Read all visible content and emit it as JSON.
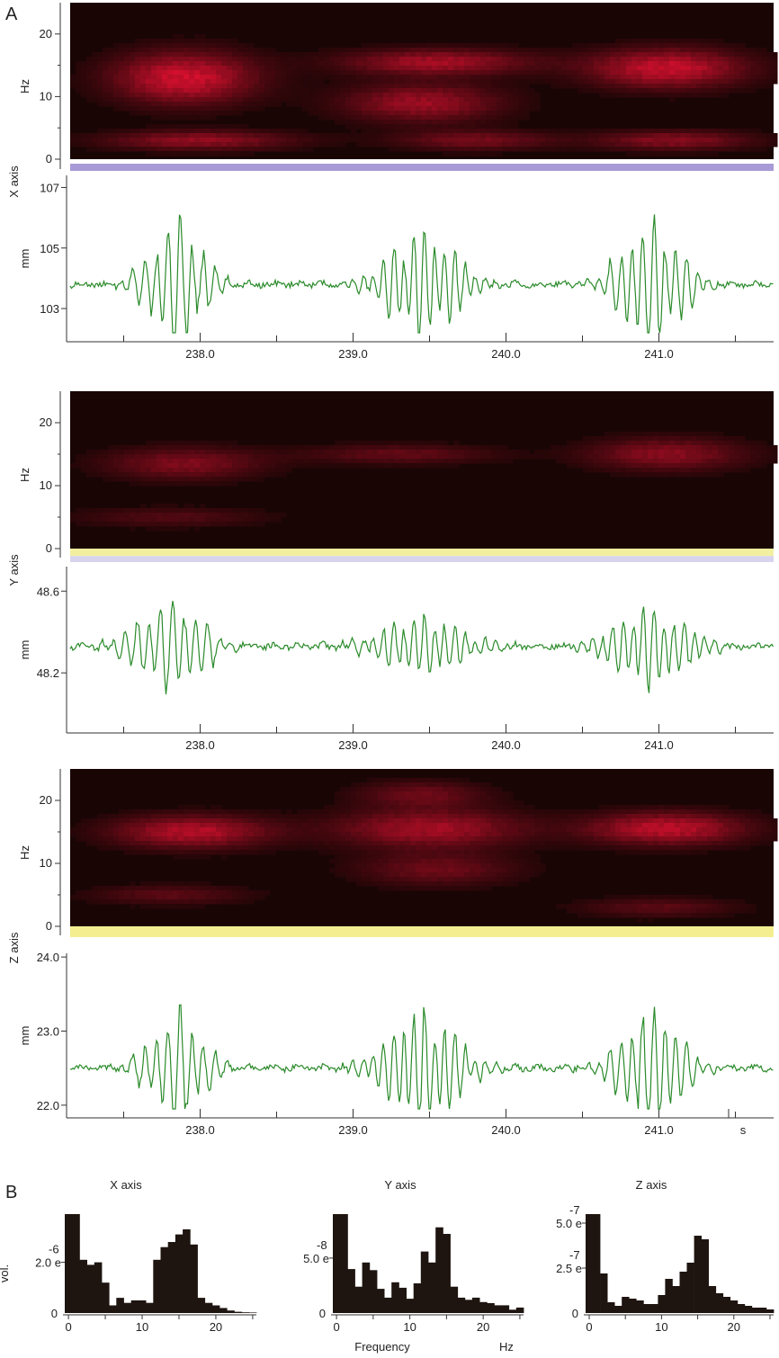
{
  "panels": {
    "a": "A",
    "b": "B"
  },
  "units": {
    "hz": "Hz",
    "mm": "mm",
    "seconds": "s"
  },
  "colors": {
    "spectrogram_bg": "#1a0505",
    "spectrogram_hot": "#e01030",
    "trace": "#2a8a2a",
    "bar": "#1e1410",
    "x_strip": "#a89ad6",
    "y_strip_top": "#f2f0a0",
    "y_strip_bottom": "#d8d4ee",
    "z_strip": "#f4ee90"
  },
  "time_ticks": [
    "238.0",
    "239.0",
    "240.0",
    "241.0"
  ],
  "chart_data": [
    {
      "type": "heatmap",
      "id": "spec_x",
      "axis_label": "X axis",
      "ylabel": "Hz",
      "y_ticks": [
        "0",
        "10",
        "20"
      ],
      "ylim": [
        0,
        25
      ],
      "xlim": [
        237.15,
        241.75
      ],
      "bands": [
        {
          "t": 237.9,
          "f": 13,
          "wt": 0.45,
          "wf": 4,
          "a": 1.0
        },
        {
          "t": 239.55,
          "f": 15.5,
          "wt": 0.6,
          "wf": 2,
          "a": 0.75
        },
        {
          "t": 239.45,
          "f": 9,
          "wt": 0.5,
          "wf": 3,
          "a": 0.7
        },
        {
          "t": 241.05,
          "f": 14.5,
          "wt": 0.5,
          "wf": 3,
          "a": 0.95
        },
        {
          "t": 238.0,
          "f": 3,
          "wt": 0.6,
          "wf": 1.5,
          "a": 0.65
        },
        {
          "t": 239.8,
          "f": 3,
          "wt": 0.5,
          "wf": 1.5,
          "a": 0.5
        },
        {
          "t": 241.1,
          "f": 3,
          "wt": 0.5,
          "wf": 1.5,
          "a": 0.6
        }
      ]
    },
    {
      "type": "line",
      "id": "trace_x",
      "ylabel": "mm",
      "y_ticks": [
        "103",
        "105",
        "107"
      ],
      "y_tick_values": [
        103,
        105,
        107
      ],
      "ylim": [
        102.2,
        107.4
      ],
      "baseline": 103.8,
      "bursts": [
        {
          "t": 237.85,
          "amp": 3.2,
          "w": 0.22,
          "f": 13
        },
        {
          "t": 239.45,
          "amp": 2.6,
          "w": 0.3,
          "f": 15
        },
        {
          "t": 240.95,
          "amp": 3.1,
          "w": 0.25,
          "f": 14
        }
      ]
    },
    {
      "type": "heatmap",
      "id": "spec_y",
      "axis_label": "Y axis",
      "ylabel": "Hz",
      "y_ticks": [
        "0",
        "10",
        "20"
      ],
      "ylim": [
        0,
        25
      ],
      "xlim": [
        237.15,
        241.75
      ],
      "bands": [
        {
          "t": 237.9,
          "f": 13.5,
          "wt": 0.5,
          "wf": 2.5,
          "a": 0.55
        },
        {
          "t": 239.3,
          "f": 15,
          "wt": 0.6,
          "wf": 1.5,
          "a": 0.4
        },
        {
          "t": 241.05,
          "f": 15,
          "wt": 0.5,
          "wf": 2.5,
          "a": 0.6
        },
        {
          "t": 237.8,
          "f": 5,
          "wt": 0.6,
          "wf": 1.5,
          "a": 0.3
        }
      ]
    },
    {
      "type": "line",
      "id": "trace_y",
      "ylabel": "mm",
      "y_ticks": [
        "48.2",
        "48.6"
      ],
      "y_tick_values": [
        48.2,
        48.6
      ],
      "ylim": [
        47.95,
        48.72
      ],
      "baseline": 48.33,
      "bursts": [
        {
          "t": 237.8,
          "amp": 0.34,
          "w": 0.28,
          "f": 13
        },
        {
          "t": 239.45,
          "amp": 0.22,
          "w": 0.35,
          "f": 15
        },
        {
          "t": 240.95,
          "amp": 0.3,
          "w": 0.3,
          "f": 15
        }
      ]
    },
    {
      "type": "heatmap",
      "id": "spec_z",
      "axis_label": "Z axis",
      "ylabel": "Hz",
      "y_ticks": [
        "0",
        "10",
        "20"
      ],
      "ylim": [
        0,
        25
      ],
      "xlim": [
        237.15,
        241.75
      ],
      "bands": [
        {
          "t": 237.95,
          "f": 15,
          "wt": 0.5,
          "wf": 2.5,
          "a": 0.85
        },
        {
          "t": 239.5,
          "f": 15.5,
          "wt": 0.6,
          "wf": 3,
          "a": 0.75
        },
        {
          "t": 239.45,
          "f": 21,
          "wt": 0.4,
          "wf": 2,
          "a": 0.45
        },
        {
          "t": 239.55,
          "f": 9,
          "wt": 0.5,
          "wf": 2.5,
          "a": 0.45
        },
        {
          "t": 241.05,
          "f": 15.5,
          "wt": 0.5,
          "wf": 2.5,
          "a": 0.9
        },
        {
          "t": 237.8,
          "f": 5,
          "wt": 0.5,
          "wf": 1.5,
          "a": 0.35
        },
        {
          "t": 241.0,
          "f": 3,
          "wt": 0.5,
          "wf": 1.5,
          "a": 0.35
        }
      ]
    },
    {
      "type": "line",
      "id": "trace_z",
      "ylabel": "mm",
      "y_ticks": [
        "22.0",
        "23.0",
        "24.0"
      ],
      "y_tick_values": [
        22.0,
        23.0,
        24.0
      ],
      "ylim": [
        21.95,
        24.05
      ],
      "baseline": 22.5,
      "bursts": [
        {
          "t": 237.85,
          "amp": 1.1,
          "w": 0.22,
          "f": 13
        },
        {
          "t": 239.45,
          "amp": 1.2,
          "w": 0.3,
          "f": 15
        },
        {
          "t": 240.95,
          "amp": 1.2,
          "w": 0.25,
          "f": 14
        }
      ]
    },
    {
      "type": "bar",
      "id": "hist_x",
      "title": "X axis",
      "y_tick_label": "2.0 e",
      "y_exponent": "-6",
      "y_tick_value": 2.0,
      "ylabel_fragment": "vol.",
      "xlim": [
        -0.5,
        25.5
      ],
      "ylim": [
        0,
        3.9
      ],
      "x_ticks": [
        "0",
        "10",
        "20"
      ],
      "x_tick_values": [
        0,
        10,
        20
      ],
      "values": [
        3.9,
        3.9,
        2.1,
        1.9,
        2.0,
        1.2,
        0.3,
        0.6,
        0.4,
        0.5,
        0.5,
        0.4,
        2.1,
        2.6,
        2.8,
        3.1,
        3.3,
        2.7,
        0.6,
        0.4,
        0.3,
        0.2,
        0.1,
        0.05,
        0.03,
        0.02
      ]
    },
    {
      "type": "bar",
      "id": "hist_y",
      "title": "Y axis",
      "y_tick_label": "5.0 e",
      "y_exponent": "-8",
      "y_tick_value": 5.0,
      "xlim": [
        -0.5,
        25.5
      ],
      "ylim": [
        0,
        9.0
      ],
      "x_ticks": [
        "0",
        "10",
        "20"
      ],
      "x_tick_values": [
        0,
        10,
        20
      ],
      "xlabel": "Frequency",
      "xunit": "Hz",
      "values": [
        9.0,
        9.0,
        4.0,
        2.4,
        4.6,
        3.9,
        2.2,
        1.4,
        2.8,
        2.3,
        1.3,
        2.7,
        5.6,
        4.6,
        7.8,
        7.2,
        2.4,
        1.4,
        1.2,
        1.4,
        1.0,
        0.9,
        0.7,
        0.7,
        0.3,
        0.5
      ]
    },
    {
      "type": "bar",
      "id": "hist_z",
      "title": "Z axis",
      "y_tick_label": "2.5 e",
      "y_exponent": "-7",
      "y_tick_value": 2.5,
      "y_tick2_label": "5.0 e",
      "y_exponent2": "-7",
      "y_tick2_value": 5.0,
      "xlim": [
        -0.5,
        25.5
      ],
      "ylim": [
        0,
        5.5
      ],
      "x_ticks": [
        "0",
        "10",
        "20"
      ],
      "x_tick_values": [
        0,
        10,
        20
      ],
      "values": [
        5.5,
        5.5,
        2.2,
        0.6,
        0.4,
        0.9,
        0.8,
        0.7,
        0.5,
        0.5,
        1.0,
        1.9,
        1.5,
        2.3,
        2.8,
        4.3,
        4.1,
        1.5,
        1.1,
        0.9,
        0.7,
        0.5,
        0.4,
        0.3,
        0.3,
        0.2
      ]
    }
  ]
}
